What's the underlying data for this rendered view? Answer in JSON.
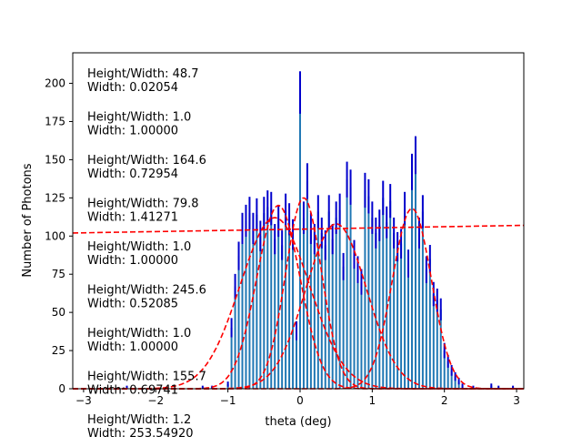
{
  "chart_data": {
    "type": "bar",
    "xlabel": "theta (deg)",
    "ylabel": "Number of Photons",
    "xlim": [
      -3.15,
      3.1
    ],
    "ylim": [
      0,
      220
    ],
    "xticks": [
      "−3",
      "−2",
      "−1",
      "0",
      "1",
      "2",
      "3"
    ],
    "yticks": [
      "0",
      "25",
      "50",
      "75",
      "100",
      "125",
      "150",
      "175",
      "200"
    ],
    "grid": false,
    "annotations": [
      "Height/Width: 48.7",
      "Width: 0.02054",
      "Height/Width: 1.0",
      "Width: 1.00000",
      "Height/Width: 164.6",
      "Width: 0.72954",
      "Height/Width: 79.8",
      "Width: 1.41271",
      "Height/Width: 1.0",
      "Width: 1.00000",
      "Height/Width: 245.6",
      "Width: 0.52085",
      "Height/Width: 1.0",
      "Width: 1.00000",
      "Height/Width: 155.7",
      "Width: 0.69741",
      "Height/Width: 1.2",
      "Width: 253.54920"
    ],
    "histogram": {
      "bin_width": 0.05,
      "x": [
        -2.4,
        -1.35,
        -1.22,
        -1.0,
        -0.95,
        -0.9,
        -0.85,
        -0.8,
        -0.75,
        -0.7,
        -0.65,
        -0.6,
        -0.55,
        -0.5,
        -0.45,
        -0.4,
        -0.35,
        -0.3,
        -0.25,
        -0.2,
        -0.15,
        -0.1,
        -0.05,
        0.0,
        0.05,
        0.1,
        0.15,
        0.2,
        0.25,
        0.3,
        0.35,
        0.4,
        0.45,
        0.5,
        0.55,
        0.6,
        0.65,
        0.7,
        0.75,
        0.8,
        0.85,
        0.9,
        0.95,
        1.0,
        1.05,
        1.1,
        1.15,
        1.2,
        1.25,
        1.3,
        1.35,
        1.4,
        1.45,
        1.5,
        1.55,
        1.6,
        1.65,
        1.7,
        1.75,
        1.8,
        1.85,
        1.9,
        1.95,
        2.0,
        2.05,
        2.1,
        2.15,
        2.2,
        2.25,
        2.4,
        2.65,
        2.75,
        2.95
      ],
      "counts": [
        1,
        1,
        1,
        3,
        40,
        67,
        87,
        105,
        110,
        115,
        105,
        114,
        100,
        115,
        119,
        118,
        98,
        110,
        94,
        117,
        111,
        101,
        38,
        194,
        112,
        136,
        105,
        98,
        116,
        102,
        94,
        116,
        98,
        112,
        117,
        80,
        137,
        132,
        88,
        78,
        70,
        130,
        126,
        112,
        102,
        107,
        125,
        109,
        123,
        102,
        93,
        95,
        118,
        82,
        142,
        153,
        102,
        116,
        78,
        85,
        62,
        58,
        52,
        25,
        18,
        12,
        8,
        5,
        2,
        1,
        2,
        1,
        1
      ],
      "errors": [
        1,
        1,
        1,
        1.7,
        6.3,
        8.2,
        9.3,
        10.2,
        10.5,
        10.7,
        10.2,
        10.7,
        10,
        10.7,
        10.9,
        10.9,
        9.9,
        10.5,
        9.7,
        10.8,
        10.5,
        10,
        6.2,
        13.9,
        10.6,
        11.7,
        10.2,
        9.9,
        10.8,
        10.1,
        9.7,
        10.8,
        9.9,
        10.6,
        10.8,
        8.9,
        11.7,
        11.5,
        9.4,
        8.8,
        8.4,
        11.4,
        11.2,
        10.6,
        10.1,
        10.3,
        11.2,
        10.4,
        11.1,
        10.1,
        9.6,
        9.7,
        10.9,
        9.1,
        11.9,
        12.4,
        10.1,
        10.8,
        8.8,
        9.2,
        7.9,
        7.6,
        7.2,
        5,
        4.2,
        3.5,
        2.8,
        2.2,
        1.4,
        1,
        1.4,
        1,
        1
      ]
    },
    "series": [
      {
        "kind": "gaussian",
        "amplitude": 112,
        "center": -0.35,
        "sigma": 0.48
      },
      {
        "kind": "gaussian",
        "amplitude": 120,
        "center": -0.3,
        "sigma": 0.3
      },
      {
        "kind": "gaussian",
        "amplitude": 125,
        "center": 0.05,
        "sigma": 0.25
      },
      {
        "kind": "gaussian",
        "amplitude": 108,
        "center": 0.5,
        "sigma": 0.42
      },
      {
        "kind": "gaussian",
        "amplitude": 118,
        "center": 1.55,
        "sigma": 0.27
      },
      {
        "kind": "linear",
        "y_at_xmin": 102,
        "y_at_xmax": 107
      }
    ],
    "colors": {
      "bars": "#1f77b4",
      "errorbars": "#0000cc",
      "fits": "#ff0000",
      "axes": "#000000"
    }
  }
}
